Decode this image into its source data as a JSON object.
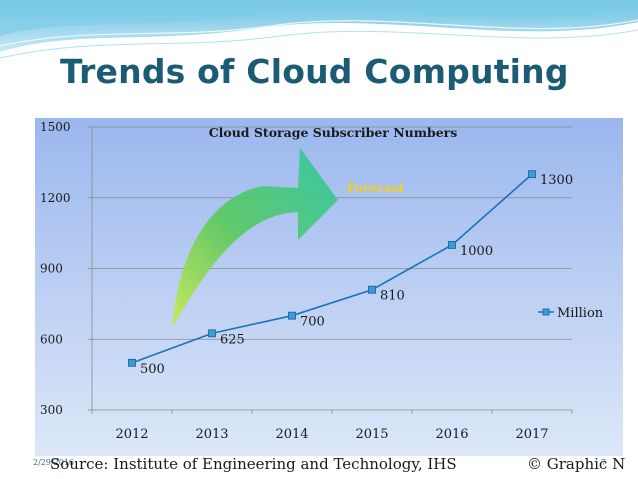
{
  "slide": {
    "title": "Trends of Cloud Computing",
    "footer_date": "2/29/2016",
    "footer_source": "Source: Institute of Engineering and Technology, IHS",
    "footer_credit": "© Graphic N",
    "footer_page": "7"
  },
  "colors": {
    "title": "#1b5c74",
    "series_line": "#1a73b8",
    "marker_fill": "#3a9bd6",
    "arrow_green": "#3cc26a",
    "forecast_label": "#f2d21a"
  },
  "chart_data": {
    "type": "line",
    "title": "Cloud Storage Subscriber Numbers",
    "annotation": "Forecast",
    "xlabel": "",
    "ylabel": "",
    "categories": [
      "2012",
      "2013",
      "2014",
      "2015",
      "2016",
      "2017"
    ],
    "series": [
      {
        "name": "Million",
        "values": [
          500,
          625,
          700,
          810,
          1000,
          1300
        ]
      }
    ],
    "ylim": [
      300,
      1500
    ],
    "yticks": [
      300,
      600,
      900,
      1200,
      1500
    ],
    "grid": true,
    "legend": "right",
    "data_labels": true
  }
}
